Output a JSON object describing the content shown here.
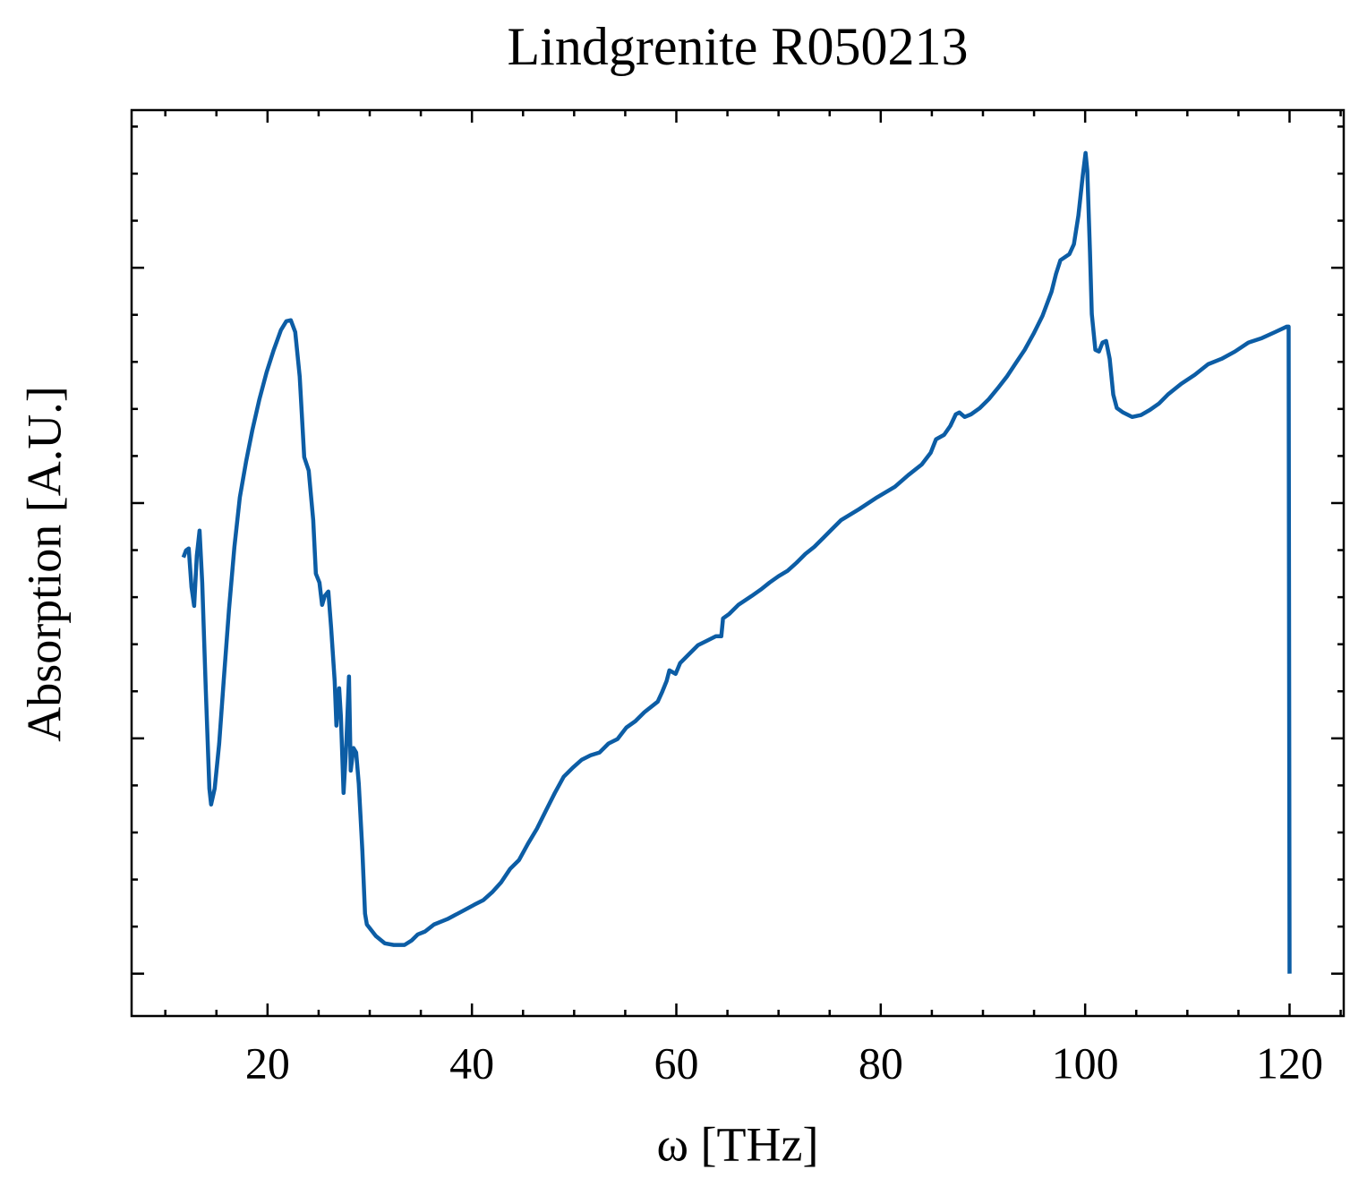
{
  "chart_data": {
    "type": "line",
    "title": "Lindgrenite R050213",
    "x_label": "ω [THz]",
    "y_label": "Absorption [A.U.]",
    "color": "#0c5da5",
    "xlim": [
      6.7,
      125.3
    ],
    "ylim": [
      -0.18,
      3.67
    ],
    "xticks": [
      20,
      40,
      60,
      80,
      100,
      120
    ],
    "yticks": [
      0,
      1,
      2,
      3
    ],
    "ytick_labels": false,
    "xminor": 5,
    "yminor": 0.2,
    "ticks_inside": true,
    "mirror_ticks": true,
    "x": [
      11.77,
      12.03,
      12.29,
      12.56,
      12.82,
      13.08,
      13.35,
      13.61,
      13.96,
      14.31,
      14.48,
      14.83,
      15.27,
      15.71,
      16.23,
      16.76,
      17.29,
      17.9,
      18.51,
      19.21,
      19.91,
      20.61,
      21.31,
      21.84,
      22.28,
      22.71,
      23.15,
      23.59,
      24.03,
      24.47,
      24.73,
      25.08,
      25.34,
      25.6,
      25.95,
      26.22,
      26.57,
      26.74,
      27.01,
      27.18,
      27.44,
      27.71,
      27.97,
      28.14,
      28.41,
      28.67,
      28.93,
      29.28,
      29.54,
      29.72,
      30.6,
      31.47,
      32.35,
      33.4,
      34.1,
      34.71,
      35.41,
      36.29,
      37.6,
      38.91,
      40.23,
      41.1,
      41.98,
      42.85,
      43.73,
      44.61,
      45.48,
      46.36,
      47.23,
      48.11,
      48.98,
      49.86,
      50.74,
      51.61,
      52.49,
      53.36,
      54.24,
      55.11,
      55.99,
      56.87,
      58.18,
      58.62,
      59.05,
      59.32,
      59.93,
      60.37,
      61.24,
      62.12,
      63.0,
      63.87,
      64.4,
      64.57,
      65.18,
      66.06,
      67.37,
      68.25,
      69.12,
      70.0,
      70.88,
      71.75,
      72.63,
      73.5,
      74.38,
      75.25,
      76.13,
      77.88,
      79.63,
      81.38,
      82.7,
      84.01,
      84.89,
      85.41,
      86.2,
      86.81,
      87.34,
      87.69,
      88.21,
      88.83,
      89.7,
      90.58,
      91.45,
      92.33,
      93.2,
      94.08,
      94.96,
      95.83,
      96.71,
      97.15,
      97.58,
      98.46,
      98.9,
      99.34,
      99.77,
      100.04,
      100.21,
      100.47,
      100.65,
      101.0,
      101.35,
      101.7,
      102.05,
      102.4,
      102.75,
      103.1,
      103.71,
      104.59,
      105.46,
      106.34,
      107.22,
      108.09,
      109.4,
      110.72,
      112.03,
      113.35,
      114.66,
      115.97,
      117.29,
      118.6,
      119.74,
      119.91,
      120.0
    ],
    "values": [
      1.769,
      1.799,
      1.807,
      1.643,
      1.563,
      1.776,
      1.883,
      1.662,
      1.206,
      0.787,
      0.719,
      0.787,
      0.978,
      1.244,
      1.548,
      1.814,
      2.024,
      2.176,
      2.309,
      2.442,
      2.556,
      2.651,
      2.735,
      2.773,
      2.777,
      2.727,
      2.537,
      2.195,
      2.138,
      1.928,
      1.7,
      1.662,
      1.567,
      1.605,
      1.624,
      1.472,
      1.244,
      1.054,
      1.213,
      1.092,
      0.768,
      0.978,
      1.263,
      0.863,
      0.959,
      0.94,
      0.806,
      0.521,
      0.255,
      0.209,
      0.16,
      0.129,
      0.122,
      0.122,
      0.141,
      0.167,
      0.179,
      0.209,
      0.232,
      0.262,
      0.293,
      0.312,
      0.346,
      0.388,
      0.445,
      0.483,
      0.552,
      0.616,
      0.692,
      0.768,
      0.837,
      0.875,
      0.909,
      0.928,
      0.94,
      0.978,
      0.997,
      1.046,
      1.073,
      1.111,
      1.156,
      1.198,
      1.244,
      1.289,
      1.274,
      1.32,
      1.358,
      1.396,
      1.415,
      1.434,
      1.434,
      1.51,
      1.529,
      1.567,
      1.605,
      1.632,
      1.662,
      1.689,
      1.712,
      1.746,
      1.784,
      1.814,
      1.852,
      1.89,
      1.928,
      1.974,
      2.024,
      2.069,
      2.119,
      2.164,
      2.214,
      2.271,
      2.29,
      2.328,
      2.377,
      2.385,
      2.366,
      2.377,
      2.404,
      2.442,
      2.488,
      2.537,
      2.594,
      2.651,
      2.72,
      2.796,
      2.898,
      2.974,
      3.032,
      3.058,
      3.1,
      3.222,
      3.393,
      3.488,
      3.412,
      3.07,
      2.803,
      2.651,
      2.644,
      2.682,
      2.689,
      2.613,
      2.461,
      2.404,
      2.385,
      2.366,
      2.374,
      2.396,
      2.423,
      2.461,
      2.507,
      2.545,
      2.59,
      2.613,
      2.644,
      2.682,
      2.701,
      2.727,
      2.75,
      2.75,
      0
    ]
  }
}
